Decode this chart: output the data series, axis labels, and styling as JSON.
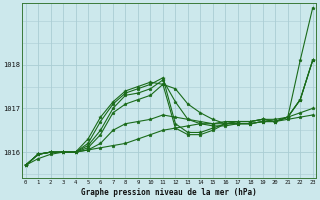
{
  "background_color": "#cce8ec",
  "grid_color": "#aacdd4",
  "line_color": "#1a6b1a",
  "hours": [
    0,
    1,
    2,
    3,
    4,
    5,
    6,
    7,
    8,
    9,
    10,
    11,
    12,
    13,
    14,
    15,
    16,
    17,
    18,
    19,
    20,
    21,
    22,
    23
  ],
  "lines": [
    [
      1015.7,
      1015.85,
      1015.95,
      1016.0,
      1016.0,
      1016.05,
      1016.1,
      1016.15,
      1016.2,
      1016.3,
      1016.4,
      1016.5,
      1016.55,
      1016.6,
      1016.65,
      1016.65,
      1016.7,
      1016.7,
      1016.7,
      1016.75,
      1016.75,
      1016.8,
      1016.9,
      1017.0
    ],
    [
      1015.7,
      1015.95,
      1016.0,
      1016.0,
      1016.0,
      1016.05,
      1016.2,
      1016.5,
      1016.65,
      1016.7,
      1016.75,
      1016.85,
      1016.8,
      1016.75,
      1016.7,
      1016.65,
      1016.65,
      1016.65,
      1016.65,
      1016.7,
      1016.7,
      1016.75,
      1016.8,
      1016.85
    ],
    [
      1015.7,
      1015.95,
      1016.0,
      1016.0,
      1016.0,
      1016.1,
      1016.4,
      1016.9,
      1017.1,
      1017.2,
      1017.3,
      1017.55,
      1017.45,
      1017.1,
      1016.9,
      1016.75,
      1016.65,
      1016.65,
      1016.65,
      1016.7,
      1016.7,
      1016.8,
      1017.2,
      1018.1
    ],
    [
      1015.7,
      1015.95,
      1016.0,
      1016.0,
      1016.0,
      1016.15,
      1016.5,
      1017.0,
      1017.3,
      1017.35,
      1017.45,
      1017.65,
      1017.15,
      1016.75,
      1016.65,
      1016.6,
      1016.6,
      1016.65,
      1016.65,
      1016.7,
      1016.7,
      1016.8,
      1017.2,
      1018.1
    ],
    [
      1015.7,
      1015.95,
      1016.0,
      1016.0,
      1016.0,
      1016.2,
      1016.7,
      1017.1,
      1017.35,
      1017.45,
      1017.55,
      1017.7,
      1016.65,
      1016.45,
      1016.45,
      1016.55,
      1016.65,
      1016.7,
      1016.7,
      1016.75,
      1016.7,
      1016.8,
      1017.2,
      1018.1
    ],
    [
      1015.7,
      1015.95,
      1016.0,
      1016.0,
      1016.0,
      1016.3,
      1016.8,
      1017.15,
      1017.4,
      1017.5,
      1017.6,
      1017.55,
      1016.55,
      1016.4,
      1016.4,
      1016.5,
      1016.65,
      1016.7,
      1016.7,
      1016.75,
      1016.7,
      1016.8,
      1018.1,
      1019.3
    ]
  ],
  "ylim": [
    1015.4,
    1019.4
  ],
  "yticks": [
    1016,
    1017,
    1018
  ],
  "xticks": [
    0,
    1,
    2,
    3,
    4,
    5,
    6,
    7,
    8,
    9,
    10,
    11,
    12,
    13,
    14,
    15,
    16,
    17,
    18,
    19,
    20,
    21,
    22,
    23
  ],
  "xlabel": "Graphe pression niveau de la mer (hPa)",
  "marker": "*",
  "marker_size": 2.5,
  "line_width": 0.8
}
